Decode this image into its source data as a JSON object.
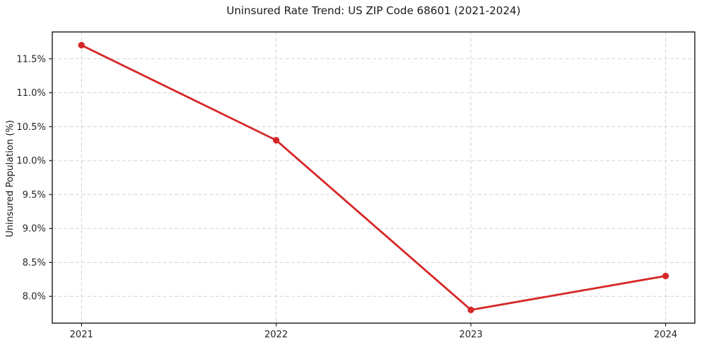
{
  "figure": {
    "background": "#ffffff"
  },
  "chart_data": {
    "type": "line",
    "title": "Uninsured Rate Trend: US ZIP Code 68601 (2021-2024)",
    "xlabel": "",
    "ylabel": "Uninsured Population (%)",
    "categories": [
      "2021",
      "2022",
      "2023",
      "2024"
    ],
    "values": [
      11.7,
      10.3,
      7.8,
      8.3
    ],
    "y_ticks": [
      {
        "value": 11.5,
        "label": "11.5%"
      },
      {
        "value": 11.0,
        "label": "11.0%"
      },
      {
        "value": 10.5,
        "label": "10.5%"
      },
      {
        "value": 10.0,
        "label": "10.0%"
      },
      {
        "value": 9.5,
        "label": "9.5%"
      },
      {
        "value": 9.0,
        "label": "9.0%"
      },
      {
        "value": 8.5,
        "label": "8.5%"
      },
      {
        "value": 8.0,
        "label": "8.0%"
      }
    ],
    "ylim": [
      7.605,
      11.895
    ],
    "grid": true,
    "grid_style": "dashed",
    "legend": "none",
    "line_color": "#d62728",
    "marker": "circle",
    "axis_color": "#1a1a1a",
    "grid_color": "#d4d4d4",
    "text_color": "#262626"
  }
}
